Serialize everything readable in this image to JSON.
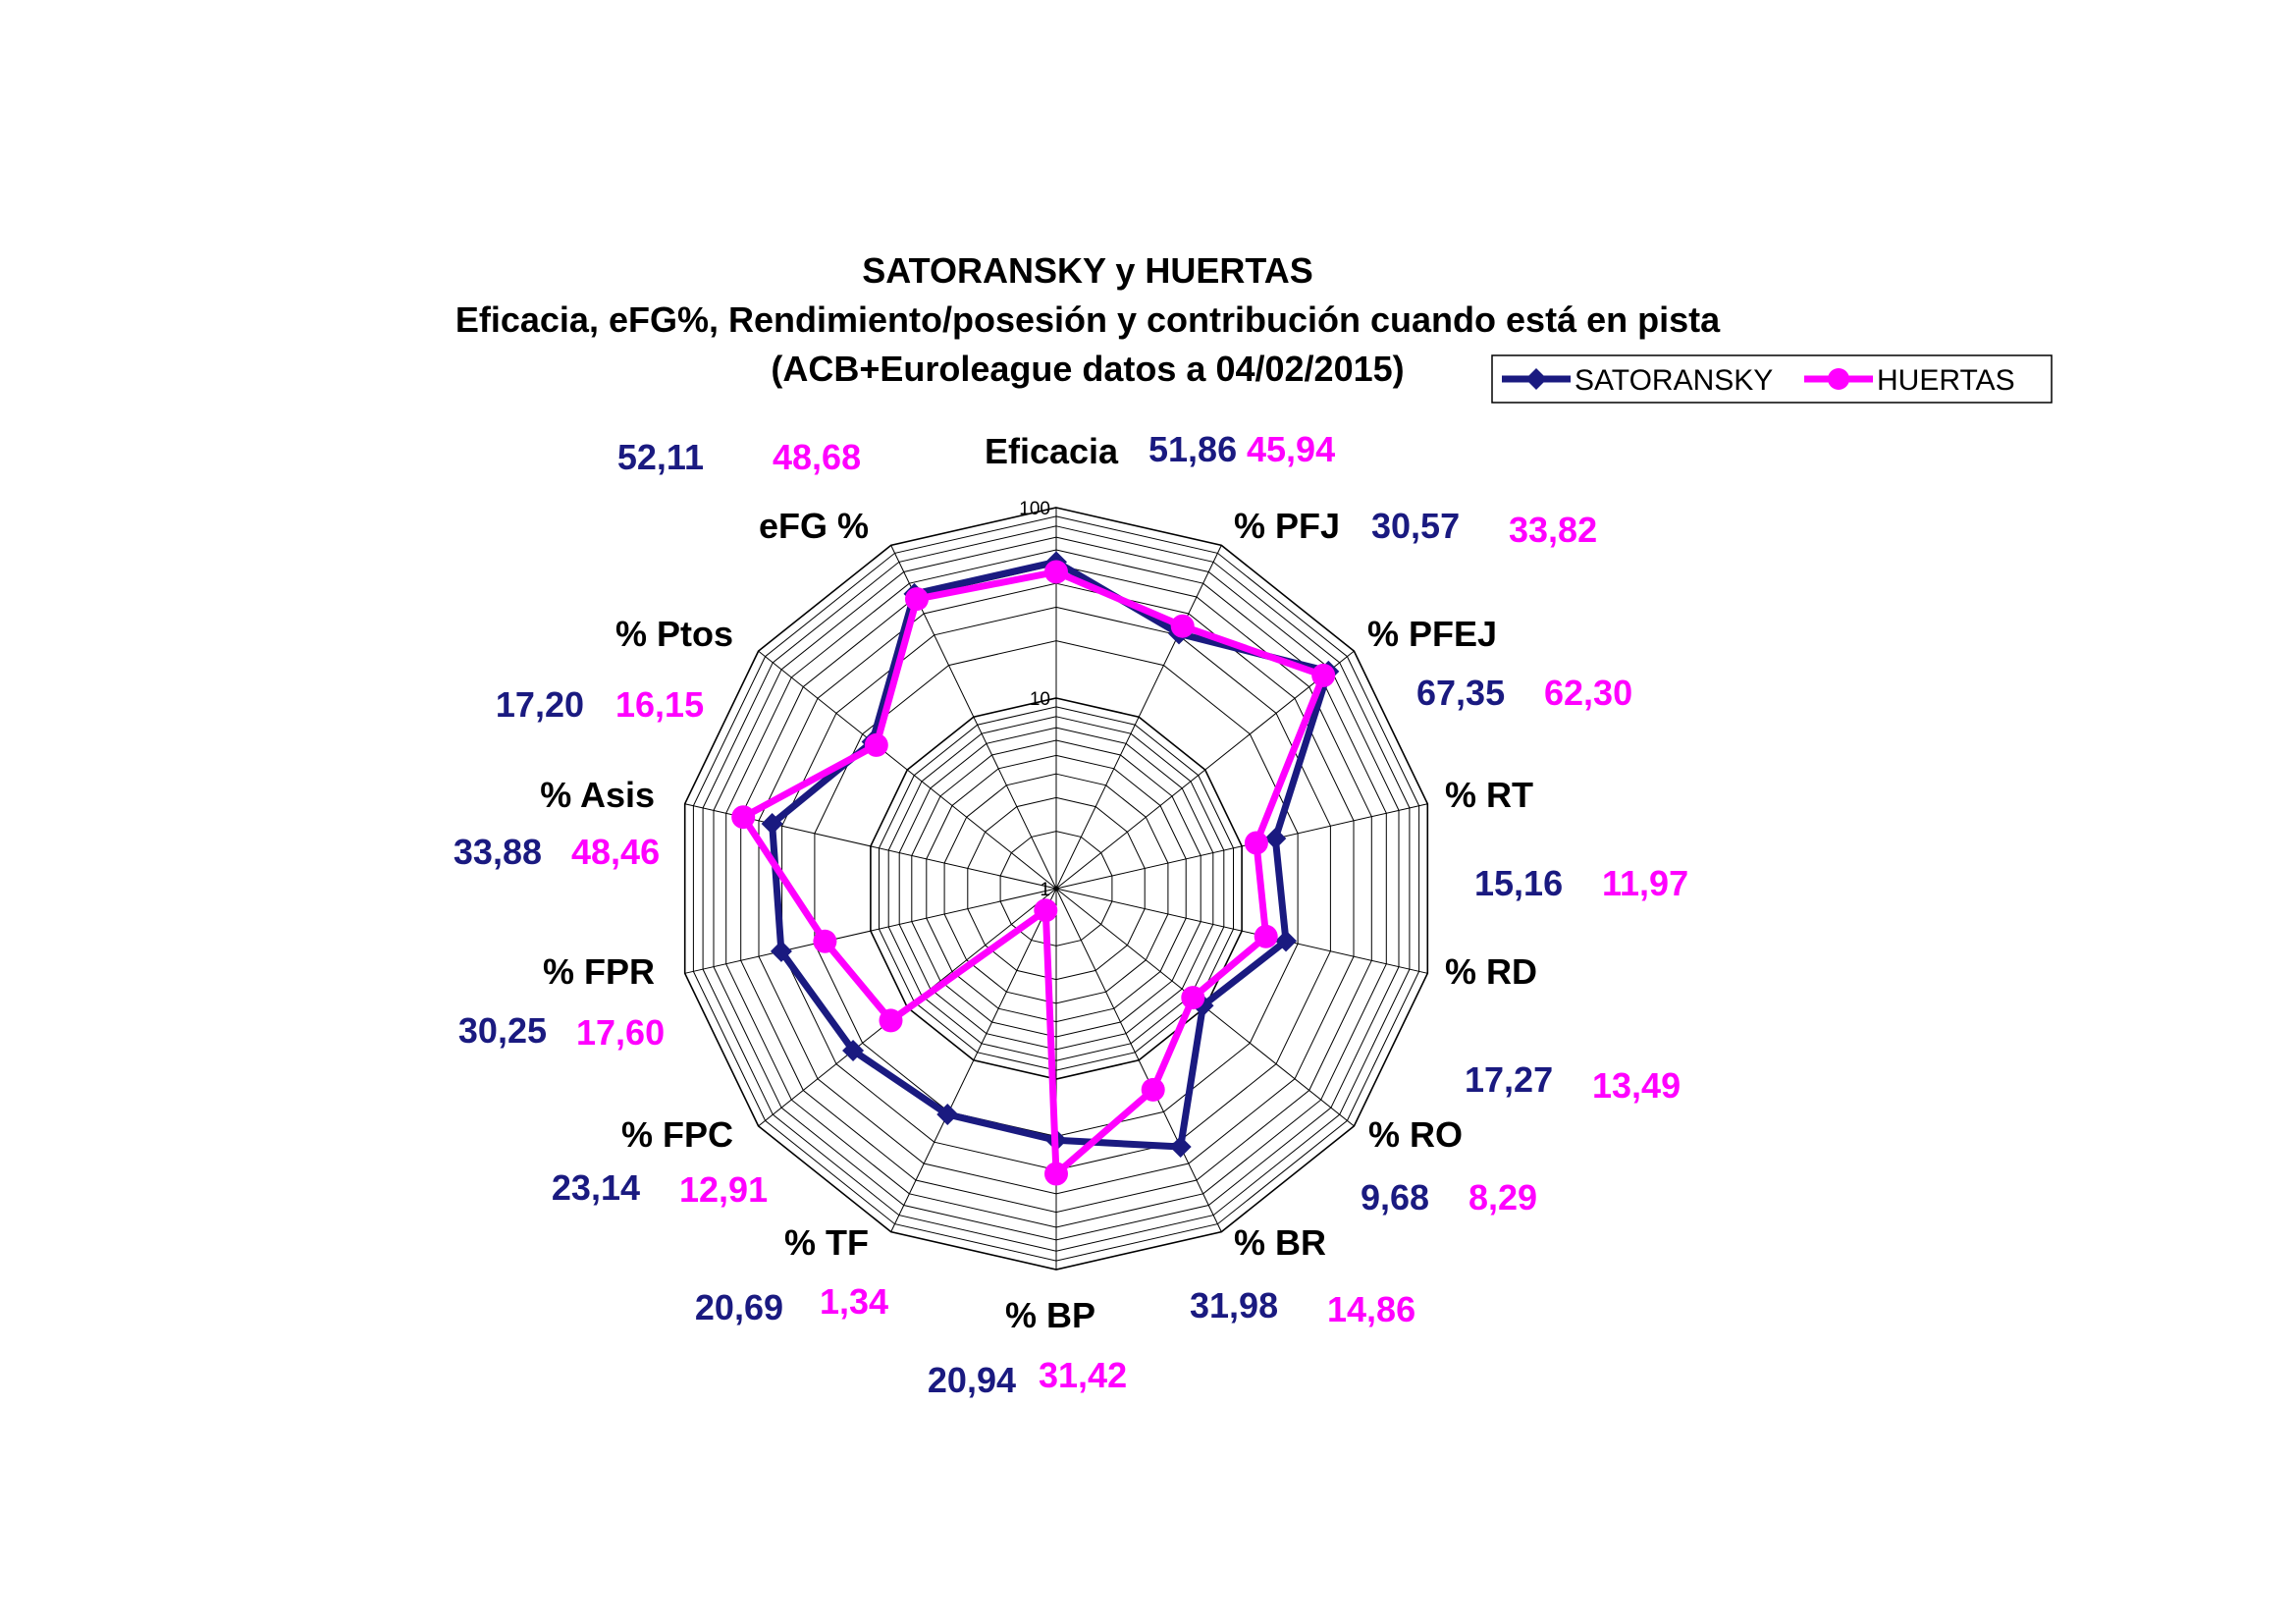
{
  "chart_data": {
    "type": "radar",
    "title": "SATORANSKY y HUERTAS",
    "subtitle": "Eficacia, eFG%, Rendimiento/posesión y contribución cuando está en pista",
    "subtitle2": "(ACB+Euroleague datos a 04/02/2015)",
    "scale": "log",
    "ylim": [
      1,
      100
    ],
    "ticks": [
      {
        "value": 1,
        "label": "1"
      },
      {
        "value": 10,
        "label": "10"
      },
      {
        "value": 100,
        "label": "100"
      }
    ],
    "grid": true,
    "legend_position": "top-right",
    "categories": [
      "Eficacia",
      "% PFJ",
      "% PFEJ",
      "% RT",
      "% RD",
      "% RO",
      "% BR",
      "% BP",
      "% TF",
      "% FPC",
      "% FPR",
      "% Asis",
      "% Ptos",
      "eFG %"
    ],
    "series": [
      {
        "name": "SATORANSKY",
        "color": "#1a1a80",
        "marker": "diamond",
        "values": [
          51.86,
          30.57,
          67.35,
          15.16,
          17.27,
          9.68,
          31.98,
          20.94,
          20.69,
          23.14,
          30.25,
          33.88,
          17.2,
          52.11
        ],
        "labels": [
          "51,86",
          "30,57",
          "67,35",
          "15,16",
          "17,27",
          "9,68",
          "31,98",
          "20,94",
          "20,69",
          "23,14",
          "30,25",
          "33,88",
          "17,20",
          "52,11"
        ]
      },
      {
        "name": "HUERTAS",
        "color": "#ff00ff",
        "marker": "circle",
        "values": [
          45.94,
          33.82,
          62.3,
          11.97,
          13.49,
          8.29,
          14.86,
          31.42,
          1.34,
          12.91,
          17.6,
          48.46,
          16.15,
          48.68
        ],
        "labels": [
          "45,94",
          "33,82",
          "62,30",
          "11,97",
          "13,49",
          "8,29",
          "14,86",
          "31,42",
          "1,34",
          "12,91",
          "17,60",
          "48,46",
          "16,15",
          "48,68"
        ]
      }
    ]
  }
}
